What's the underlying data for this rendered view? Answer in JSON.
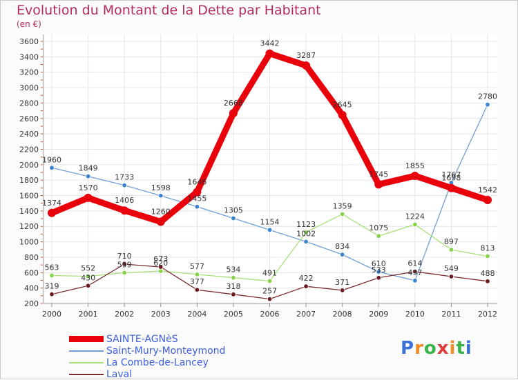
{
  "header": {
    "title": "Evolution du Montant de la Dette par Habitant",
    "subtitle": "(en €)"
  },
  "logo": {
    "text": "Proxiti",
    "letters": [
      {
        "ch": "P",
        "color": "#3a6fd8"
      },
      {
        "ch": "r",
        "color": "#f08a24"
      },
      {
        "ch": "o",
        "color": "#3ab34a"
      },
      {
        "ch": "x",
        "color": "#e23b3b"
      },
      {
        "ch": "i",
        "color": "#f08a24"
      },
      {
        "ch": "t",
        "color": "#3ab34a"
      },
      {
        "ch": "i",
        "color": "#3a6fd8"
      }
    ]
  },
  "chart_data": {
    "type": "line",
    "title": "Evolution du Montant de la Dette par Habitant",
    "subtitle": "(en €)",
    "xlabel": "",
    "ylabel": "",
    "ylim": [
      200,
      3600
    ],
    "yticks": [
      200,
      400,
      600,
      800,
      1000,
      1200,
      1400,
      1600,
      1800,
      2000,
      2200,
      2400,
      2600,
      2800,
      3000,
      3200,
      3400,
      3600
    ],
    "categories": [
      "2000",
      "2001",
      "2002",
      "2003",
      "2004",
      "2005",
      "2006",
      "2007",
      "2008",
      "2009",
      "2010",
      "2011",
      "2012"
    ],
    "grid": true,
    "legend_position": "bottom-left",
    "series": [
      {
        "name": "SAINTE-AGNèS",
        "color": "#e8000a",
        "dot_color": "#e8000a",
        "emphasis": true,
        "values": [
          1374,
          1570,
          1406,
          1260,
          1646,
          2668,
          3442,
          3287,
          2645,
          1745,
          1855,
          1698,
          1542
        ]
      },
      {
        "name": "Saint-Mury-Monteymond",
        "color": "#6f9ed6",
        "dot_color": "#3b83d1",
        "emphasis": false,
        "values": [
          1960,
          1849,
          1733,
          1598,
          1455,
          1305,
          1154,
          1002,
          834,
          610,
          497,
          1767,
          2780
        ]
      },
      {
        "name": "La Combe-de-Lancey",
        "color": "#a6e07b",
        "dot_color": "#86d44a",
        "emphasis": false,
        "values": [
          563,
          552,
          599,
          620,
          577,
          534,
          491,
          1123,
          1359,
          1075,
          1224,
          897,
          813
        ]
      },
      {
        "name": "Laval",
        "color": "#7a2a2e",
        "dot_color": "#6d1c22",
        "emphasis": false,
        "values": [
          319,
          430,
          710,
          673,
          377,
          318,
          257,
          422,
          371,
          533,
          614,
          549,
          488
        ]
      }
    ]
  }
}
